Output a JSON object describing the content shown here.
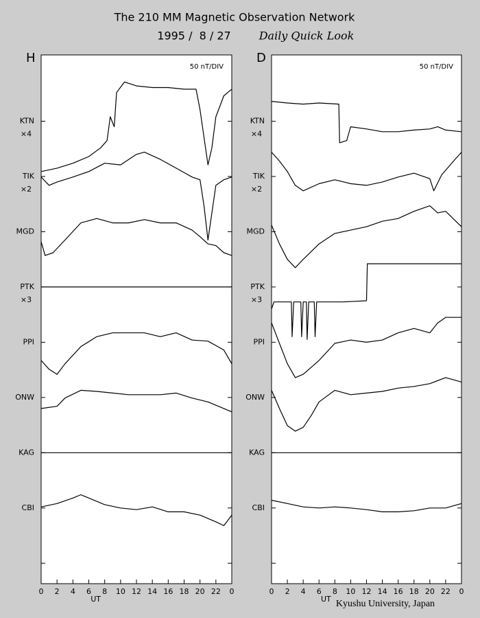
{
  "title": "The 210 MM Magnetic Observation Network",
  "date": "1995 /  8 / 27",
  "subtitle": "Daily Quick Look",
  "credit": "Kyushu University, Japan",
  "chart_data": [
    {
      "type": "line",
      "panel_label": "H",
      "scale_note": "50 nT/DIV",
      "xlabel": "UT",
      "xlim": [
        0,
        24
      ],
      "xticks": [
        0,
        2,
        4,
        6,
        8,
        10,
        12,
        14,
        16,
        18,
        20,
        22,
        {
          "value": 24,
          "label": "0"
        }
      ],
      "ylim": [
        -0.37,
        9.2
      ],
      "yticks": [
        {
          "value": 8,
          "label": "KTN"
        },
        {
          "value": 7,
          "label": "TIK"
        },
        {
          "value": 6,
          "label": "MGD"
        },
        {
          "value": 5,
          "label": "PTK"
        },
        {
          "value": 4,
          "label": "PPI"
        },
        {
          "value": 3,
          "label": "ONW"
        },
        {
          "value": 2,
          "label": "KAG"
        },
        {
          "value": 1,
          "label": "CBI"
        }
      ],
      "yticks_unlabeled": [
        0
      ],
      "multipliers": [
        {
          "value": 8,
          "label": "×4"
        },
        {
          "value": 7,
          "label": "×2"
        },
        {
          "value": 5,
          "label": "×3"
        }
      ],
      "series": [
        {
          "color": "#000000",
          "x": [
            0,
            2,
            4,
            6,
            7.5,
            8.3,
            8.7,
            9.2,
            9.5,
            10.5,
            12,
            14,
            16,
            18,
            19.5,
            20,
            20.5,
            21,
            21.5,
            22,
            23,
            24
          ],
          "values": [
            7.09,
            7.15,
            7.24,
            7.36,
            7.52,
            7.65,
            8.08,
            7.9,
            8.52,
            8.71,
            8.64,
            8.61,
            8.61,
            8.58,
            8.58,
            8.21,
            7.71,
            7.21,
            7.52,
            8.08,
            8.46,
            8.58
          ]
        },
        {
          "color": "#000000",
          "x": [
            0,
            1,
            2,
            4,
            6,
            8,
            10,
            12,
            13,
            15,
            17,
            19,
            20,
            20.5,
            21,
            21.5,
            22,
            23,
            24
          ],
          "values": [
            6.99,
            6.84,
            6.9,
            6.99,
            7.09,
            7.24,
            7.21,
            7.4,
            7.44,
            7.31,
            7.15,
            6.99,
            6.94,
            6.47,
            5.85,
            6.34,
            6.84,
            6.94,
            6.99
          ]
        },
        {
          "color": "#000000",
          "x": [
            0,
            0.5,
            1.5,
            3,
            5,
            7,
            9,
            11,
            13,
            15,
            17,
            19,
            20,
            21,
            22,
            23,
            24
          ],
          "values": [
            5.82,
            5.57,
            5.62,
            5.85,
            6.16,
            6.24,
            6.16,
            6.16,
            6.22,
            6.16,
            6.16,
            6.03,
            5.91,
            5.78,
            5.75,
            5.62,
            5.57
          ]
        },
        {
          "color": "#000000",
          "x": [
            0,
            24
          ],
          "values": [
            5,
            5
          ]
        },
        {
          "color": "#000000",
          "x": [
            0,
            1,
            2,
            3,
            5,
            7,
            9,
            11,
            13,
            15,
            17,
            19,
            21,
            23,
            24
          ],
          "values": [
            3.67,
            3.51,
            3.42,
            3.61,
            3.92,
            4.1,
            4.17,
            4.17,
            4.17,
            4.1,
            4.17,
            4.04,
            4.02,
            3.86,
            3.61
          ]
        },
        {
          "color": "#000000",
          "x": [
            0,
            2,
            3,
            5,
            7,
            9,
            11,
            13,
            15,
            17,
            19,
            21,
            23,
            24
          ],
          "values": [
            2.8,
            2.84,
            2.99,
            3.13,
            3.11,
            3.08,
            3.05,
            3.05,
            3.05,
            3.08,
            2.99,
            2.92,
            2.8,
            2.74
          ]
        },
        {
          "color": "#000000",
          "x": [
            0,
            24
          ],
          "values": [
            2,
            2
          ]
        },
        {
          "color": "#000000",
          "x": [
            0,
            2,
            4,
            5,
            6,
            8,
            10,
            12,
            14,
            16,
            18,
            20,
            22,
            23,
            24
          ],
          "values": [
            1.02,
            1.08,
            1.18,
            1.24,
            1.18,
            1.06,
            1.0,
            0.97,
            1.02,
            0.93,
            0.93,
            0.87,
            0.75,
            0.68,
            0.87
          ]
        }
      ]
    },
    {
      "type": "line",
      "panel_label": "D",
      "scale_note": "50 nT/DIV",
      "xlabel": "UT",
      "xlim": [
        0,
        24
      ],
      "xticks": [
        0,
        2,
        4,
        6,
        8,
        10,
        12,
        14,
        16,
        18,
        20,
        22,
        {
          "value": 24,
          "label": "0"
        }
      ],
      "ylim": [
        -0.37,
        9.2
      ],
      "yticks": [
        {
          "value": 8,
          "label": "KTN"
        },
        {
          "value": 7,
          "label": "TIK"
        },
        {
          "value": 6,
          "label": "MGD"
        },
        {
          "value": 5,
          "label": "PTK"
        },
        {
          "value": 4,
          "label": "PPI"
        },
        {
          "value": 3,
          "label": "ONW"
        },
        {
          "value": 2,
          "label": "KAG"
        },
        {
          "value": 1,
          "label": "CBI"
        }
      ],
      "yticks_unlabeled": [
        0
      ],
      "multipliers": [
        {
          "value": 8,
          "label": "×4"
        },
        {
          "value": 7,
          "label": "×2"
        },
        {
          "value": 5,
          "label": "×3"
        }
      ],
      "series": [
        {
          "color": "#000000",
          "x": [
            0,
            2,
            4,
            6,
            8.5,
            8.6,
            9.5,
            10,
            12,
            14,
            16,
            18,
            20,
            21,
            22,
            24
          ],
          "values": [
            8.36,
            8.33,
            8.31,
            8.33,
            8.31,
            7.61,
            7.65,
            7.9,
            7.86,
            7.81,
            7.81,
            7.84,
            7.86,
            7.9,
            7.84,
            7.81
          ]
        },
        {
          "color": "#000000",
          "x": [
            0,
            1,
            2,
            3,
            4,
            6,
            8,
            10,
            12,
            14,
            16,
            18,
            20,
            20.5,
            21.5,
            23,
            24
          ],
          "values": [
            7.44,
            7.28,
            7.09,
            6.84,
            6.74,
            6.87,
            6.94,
            6.87,
            6.84,
            6.9,
            6.99,
            7.06,
            6.96,
            6.74,
            7.03,
            7.28,
            7.44
          ]
        },
        {
          "color": "#000000",
          "x": [
            0,
            1,
            2,
            3,
            4,
            6,
            8,
            10,
            12,
            14,
            16,
            18,
            20,
            21,
            22,
            24
          ],
          "values": [
            6.12,
            5.78,
            5.5,
            5.35,
            5.5,
            5.78,
            5.97,
            6.03,
            6.09,
            6.19,
            6.24,
            6.37,
            6.47,
            6.34,
            6.37,
            6.09
          ]
        },
        {
          "color": "#000000",
          "x": [
            0,
            0.3,
            2.5,
            2.6,
            2.8,
            3.7,
            3.8,
            4,
            4.4,
            4.5,
            4.7,
            5.4,
            5.5,
            5.7,
            9,
            12,
            12.1,
            24
          ],
          "values": [
            4.6,
            4.73,
            4.73,
            4.1,
            4.73,
            4.73,
            4.1,
            4.73,
            4.73,
            4.05,
            4.73,
            4.73,
            4.1,
            4.73,
            4.73,
            4.75,
            5.42,
            5.42
          ]
        },
        {
          "color": "#000000",
          "x": [
            0,
            1,
            2,
            3,
            4,
            6,
            8,
            10,
            12,
            14,
            16,
            18,
            20,
            21,
            22,
            24
          ],
          "values": [
            4.35,
            3.98,
            3.61,
            3.36,
            3.42,
            3.67,
            3.98,
            4.04,
            4.0,
            4.04,
            4.17,
            4.25,
            4.17,
            4.35,
            4.45,
            4.45
          ]
        },
        {
          "color": "#000000",
          "x": [
            0,
            1,
            2,
            3,
            4,
            5,
            6,
            8,
            10,
            12,
            14,
            16,
            18,
            20,
            22,
            24
          ],
          "values": [
            3.13,
            2.8,
            2.49,
            2.39,
            2.46,
            2.67,
            2.92,
            3.13,
            3.05,
            3.08,
            3.11,
            3.17,
            3.2,
            3.25,
            3.36,
            3.28
          ]
        },
        {
          "color": "#000000",
          "x": [
            0,
            24
          ],
          "values": [
            2,
            2
          ]
        },
        {
          "color": "#000000",
          "x": [
            0,
            2,
            4,
            6,
            8,
            10,
            12,
            14,
            16,
            18,
            20,
            22,
            24
          ],
          "values": [
            1.14,
            1.08,
            1.02,
            1.0,
            1.02,
            1.0,
            0.97,
            0.93,
            0.93,
            0.95,
            1.0,
            1.0,
            1.08
          ]
        }
      ]
    }
  ]
}
